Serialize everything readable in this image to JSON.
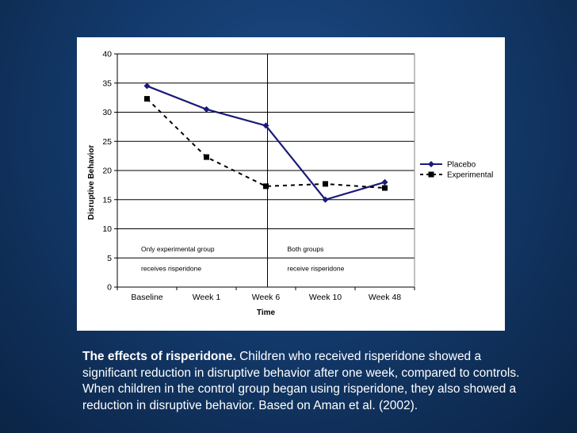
{
  "chart_data": {
    "type": "line",
    "categories": [
      "Baseline",
      "Week 1",
      "Week 6",
      "Week 10",
      "Week 48"
    ],
    "series": [
      {
        "name": "Placebo",
        "values": [
          34.5,
          30.5,
          27.7,
          15.0,
          18.0
        ],
        "color": "#1a1a7a",
        "style": "solid",
        "marker": "diamond"
      },
      {
        "name": "Experimental",
        "values": [
          32.3,
          22.3,
          17.3,
          17.7,
          17.0
        ],
        "color": "#000000",
        "style": "dashed",
        "marker": "square"
      }
    ],
    "xlabel": "Time",
    "ylabel": "Disruptive Behavior",
    "ylim": [
      0,
      40
    ],
    "yticks": [
      0,
      5,
      10,
      15,
      20,
      25,
      30,
      35,
      40
    ],
    "grid": true,
    "legend": "right",
    "divider_after_category": "Week 6",
    "annotations": [
      {
        "line1": "Only experimental group",
        "line2": "receives risperidone"
      },
      {
        "line1": "Both groups",
        "line2": "receive risperidone"
      }
    ]
  },
  "caption": {
    "bold": "The effects of risperidone.",
    "text": " Children who received risperidone showed a significant reduction in disruptive behavior after one week, compared to controls. When children in the control group began using risperidone, they also showed a reduction in disruptive behavior. Based on Aman et al. (2002)."
  }
}
